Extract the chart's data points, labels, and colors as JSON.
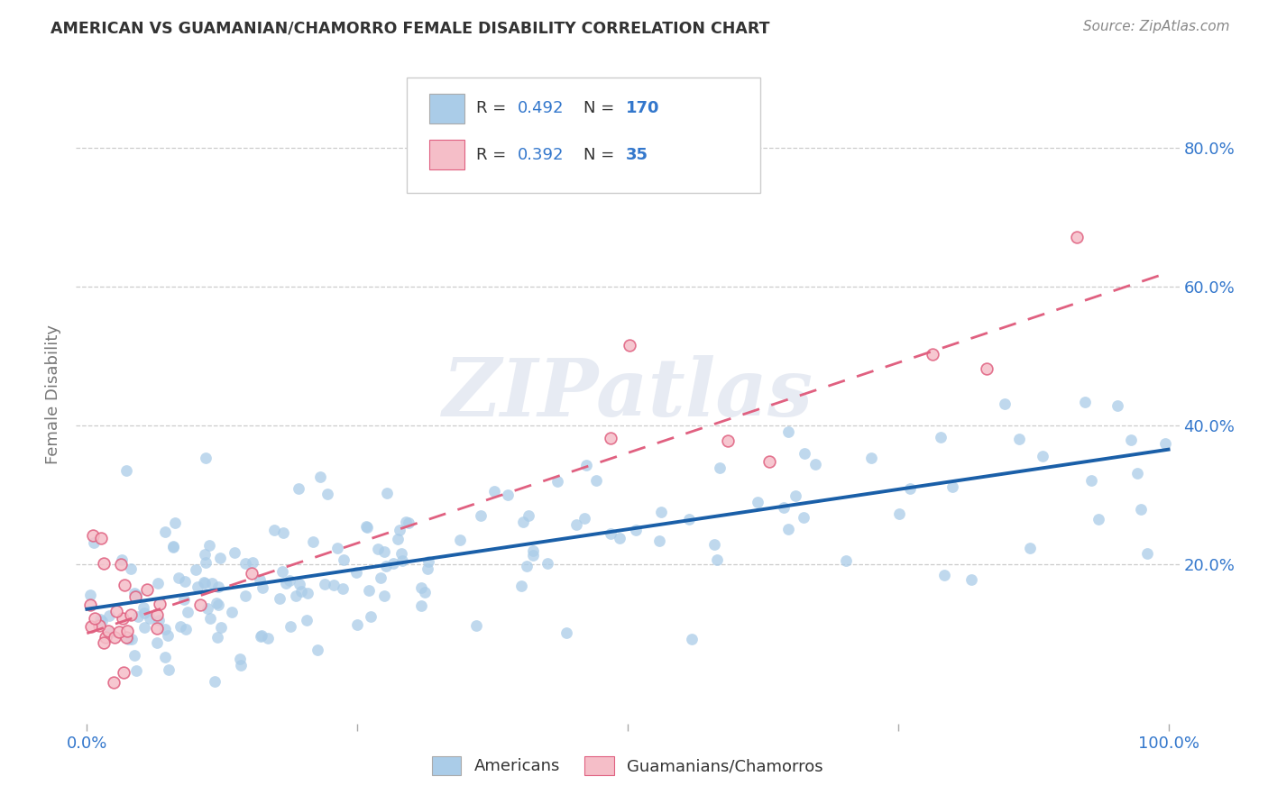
{
  "title": "AMERICAN VS GUAMANIAN/CHAMORRO FEMALE DISABILITY CORRELATION CHART",
  "source": "Source: ZipAtlas.com",
  "ylabel": "Female Disability",
  "xlim": [
    -0.01,
    1.01
  ],
  "ylim": [
    -0.03,
    0.92
  ],
  "xtick_positions": [
    0.0,
    0.25,
    0.5,
    0.75,
    1.0
  ],
  "xtick_labels": [
    "0.0%",
    "",
    "",
    "",
    "100.0%"
  ],
  "ytick_vals": [
    0.2,
    0.4,
    0.6,
    0.8
  ],
  "ytick_labels": [
    "20.0%",
    "40.0%",
    "60.0%",
    "80.0%"
  ],
  "american_R": 0.492,
  "american_N": 170,
  "guamanian_R": 0.392,
  "guamanian_N": 35,
  "american_scatter_color": "#aacce8",
  "american_line_color": "#1a5fa8",
  "guamanian_scatter_color": "#f5bec8",
  "guamanian_scatter_edge": "#e06080",
  "guamanian_line_color": "#e06080",
  "axis_label_color": "#3377cc",
  "text_color": "#333333",
  "grid_color": "#cccccc",
  "background_color": "#ffffff",
  "watermark_text": "ZIPatlas",
  "am_line_y0": 0.135,
  "am_line_y1": 0.365,
  "gu_line_y0": 0.1,
  "gu_line_y1": 0.62
}
